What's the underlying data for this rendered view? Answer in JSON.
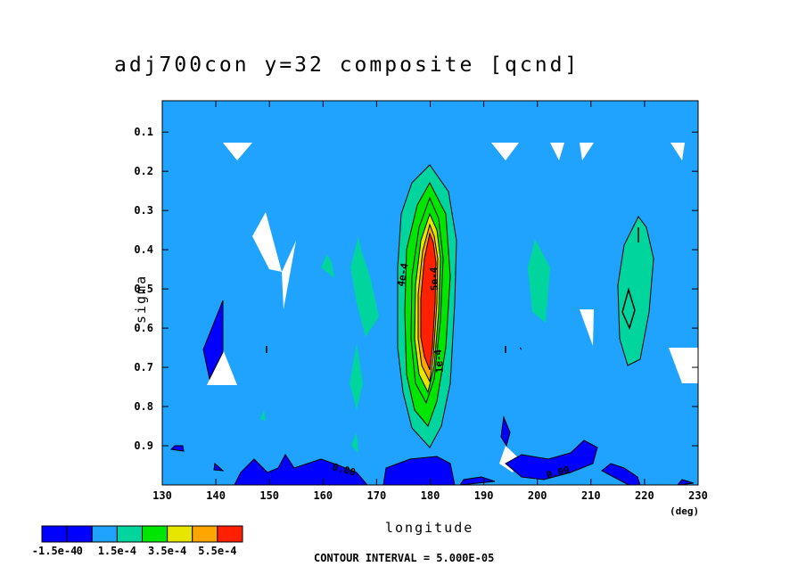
{
  "chart_data": {
    "type": "heatmap",
    "subtype": "filled contour",
    "title": "adj700con y=32 composite [qcnd]",
    "xlabel": "longitude",
    "xunit": "(deg)",
    "ylabel": "sigma",
    "xlim": [
      130,
      230
    ],
    "ylim": [
      1.0,
      0.02
    ],
    "x_ticks": [
      "130",
      "140",
      "150",
      "160",
      "170",
      "180",
      "190",
      "200",
      "210",
      "220",
      "230"
    ],
    "y_ticks": [
      "0.1",
      "0.2",
      "0.3",
      "0.4",
      "0.5",
      "0.6",
      "0.7",
      "0.8",
      "0.9"
    ],
    "contour_interval_text": "CONTOUR INTERVAL = 5.000E-05",
    "background_color": "#1FA3FF",
    "colorbar": {
      "colors": [
        "#0000FF",
        "#1FA3FF",
        "#00D59E",
        "#00E600",
        "#E6E600",
        "#FFA500",
        "#FF2000"
      ],
      "labels": [
        "-1.5e-4",
        "0",
        "1.5e-4",
        "3.5e-4",
        "5.5e-4"
      ]
    },
    "contour_labels": [
      "0.00",
      "0.00",
      "4e-4",
      "5e-4",
      "1e-4"
    ],
    "features": [
      {
        "name": "main positive maximum",
        "center_lon": 180,
        "center_sigma": 0.5,
        "peak_class": "red, > 5.5e-4",
        "sigma_range": [
          0.22,
          0.9
        ]
      },
      {
        "name": "secondary positive",
        "center_lon": 218,
        "center_sigma": 0.5,
        "peak_class": "green-cyan",
        "sigma_range": [
          0.3,
          0.72
        ]
      },
      {
        "name": "negative near surface",
        "lon_range": [
          130,
          220
        ],
        "sigma_range": [
          0.9,
          1.0
        ],
        "peak_class": "blue"
      }
    ]
  }
}
